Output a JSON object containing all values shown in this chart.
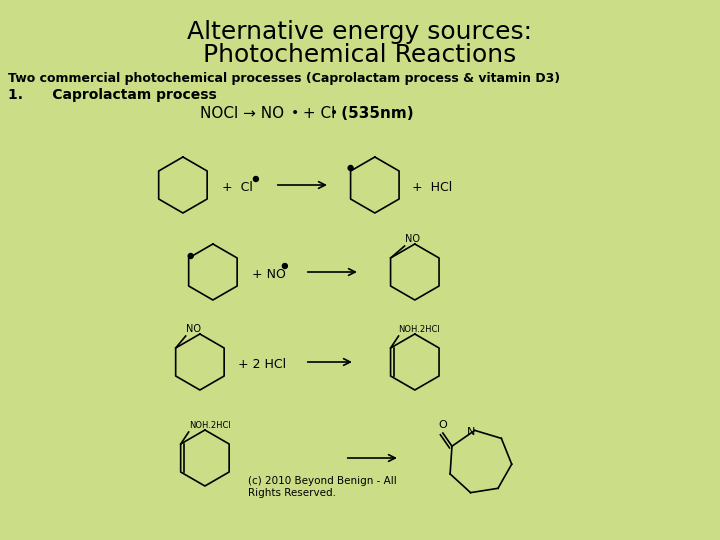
{
  "bg_color": "#ccdd88",
  "title_line1": "Alternative energy sources:",
  "title_line2": "Photochemical Reactions",
  "subtitle": "Two commercial photochemical processes (Caprolactam process & vitamin D3)",
  "item1": "1.      Caprolactam process",
  "copyright": "(c) 2010 Beyond Benign - All\nRights Reserved.",
  "title_fontsize": 18,
  "subtitle_fontsize": 9,
  "item_fontsize": 10,
  "eq_fontsize": 11,
  "small_fontsize": 8,
  "tiny_fontsize": 7
}
